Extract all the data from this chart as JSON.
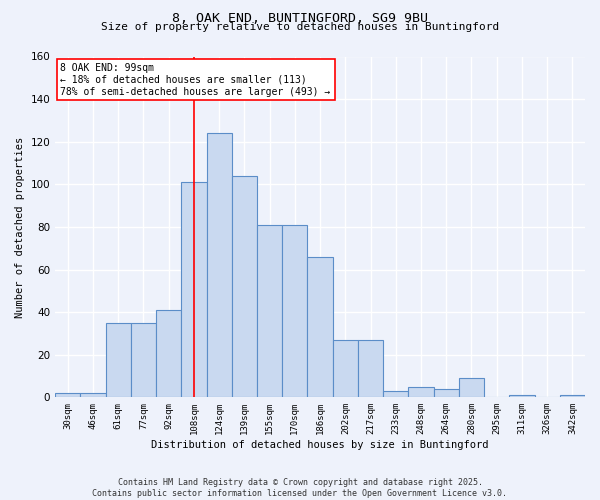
{
  "title_line1": "8, OAK END, BUNTINGFORD, SG9 9BU",
  "title_line2": "Size of property relative to detached houses in Buntingford",
  "xlabel": "Distribution of detached houses by size in Buntingford",
  "ylabel": "Number of detached properties",
  "categories": [
    "30sqm",
    "46sqm",
    "61sqm",
    "77sqm",
    "92sqm",
    "108sqm",
    "124sqm",
    "139sqm",
    "155sqm",
    "170sqm",
    "186sqm",
    "202sqm",
    "217sqm",
    "233sqm",
    "248sqm",
    "264sqm",
    "280sqm",
    "295sqm",
    "311sqm",
    "326sqm",
    "342sqm"
  ],
  "values": [
    2,
    2,
    35,
    35,
    41,
    101,
    124,
    104,
    81,
    81,
    66,
    27,
    27,
    3,
    5,
    4,
    9,
    0,
    1,
    0,
    1
  ],
  "bar_color": "#c9d9f0",
  "bar_edge_color": "#5b8dc8",
  "ylim": [
    0,
    160
  ],
  "yticks": [
    0,
    20,
    40,
    60,
    80,
    100,
    120,
    140,
    160
  ],
  "red_line_index": 5,
  "annotation_line1": "8 OAK END: 99sqm",
  "annotation_line2": "← 18% of detached houses are smaller (113)",
  "annotation_line3": "78% of semi-detached houses are larger (493) →",
  "footnote1": "Contains HM Land Registry data © Crown copyright and database right 2025.",
  "footnote2": "Contains public sector information licensed under the Open Government Licence v3.0.",
  "background_color": "#eef2fb",
  "plot_bg_color": "#eef2fb",
  "grid_color": "#ffffff"
}
